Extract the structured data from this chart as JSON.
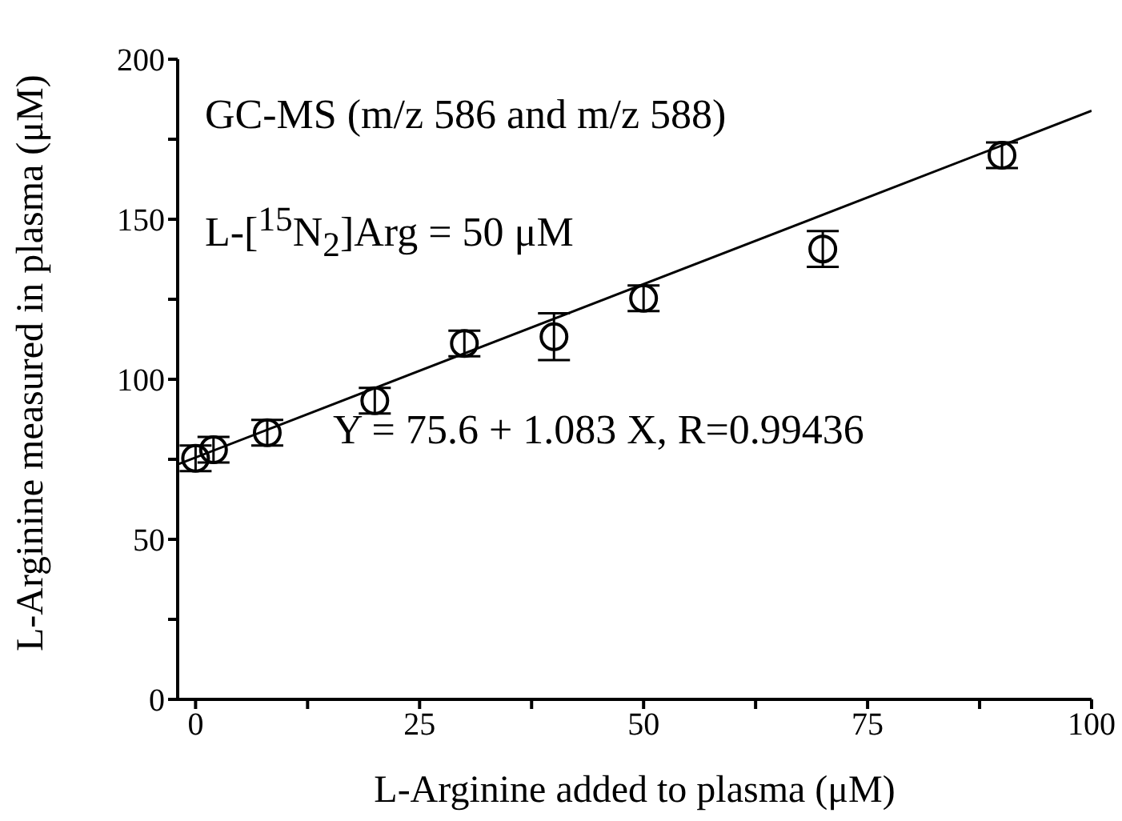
{
  "chart_data": {
    "type": "scatter",
    "xlabel": "L-Arginine added to plasma (μM)",
    "ylabel": "L-Arginine measured in plasma (μM)",
    "annotations": [
      "GC-MS (m/z 586 and m/z 588)",
      "L-[$^{15}$N$_{2}$]Arg = 50 μM",
      "Y = 75.6 + 1.083 X, R=0.99436"
    ],
    "xlim": [
      -2,
      100
    ],
    "xticks": [
      0,
      {
        "value": 12.5,
        "label": null
      },
      25,
      {
        "value": 37.5,
        "label": null
      },
      50,
      {
        "value": 62.5,
        "label": null
      },
      75,
      {
        "value": 87.5,
        "label": null
      },
      100
    ],
    "ylim": [
      0,
      200
    ],
    "yticks": [
      0,
      {
        "value": 25,
        "label": null
      },
      50,
      {
        "value": 75,
        "label": null
      },
      100,
      {
        "value": 125,
        "label": null
      },
      150,
      {
        "value": 175,
        "label": null
      },
      200
    ],
    "series": [
      {
        "color": "#000000",
        "marker": "circle",
        "x": [
          0,
          2,
          8,
          20,
          30,
          40,
          50,
          70,
          90
        ],
        "values": [
          75.3,
          78.0,
          83.3,
          93.3,
          111.2,
          113.3,
          125.3,
          140.7,
          170.0
        ],
        "errors": [
          4,
          4,
          4,
          4,
          4,
          7.3,
          4,
          5.6,
          4
        ]
      },
      {
        "type": "line",
        "color": "#000000",
        "marker": "none",
        "line_style": "solid",
        "x": [
          -2,
          100
        ],
        "values": [
          73.4,
          183.9
        ]
      }
    ]
  }
}
